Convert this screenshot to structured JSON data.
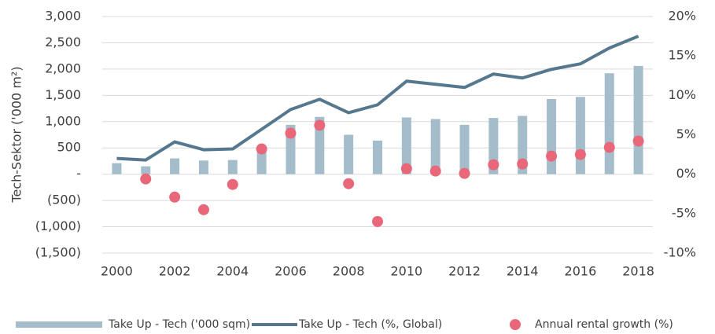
{
  "chart_data": {
    "type": "bar",
    "y_label": "Tech-Sektor ('000 m²)",
    "categories": [
      "2000",
      null,
      "2002",
      null,
      "2004",
      null,
      "2006",
      null,
      "2008",
      null,
      "2010",
      null,
      "2012",
      null,
      "2014",
      null,
      "2016",
      null,
      "2018"
    ],
    "ylim": [
      -1500,
      3000
    ],
    "yticks": [
      {
        "value": -1500,
        "label": "(1,500)"
      },
      {
        "value": -1000,
        "label": "(1,000)"
      },
      {
        "value": -500,
        "label": "(500)"
      },
      {
        "value": 0,
        "label": "-"
      },
      {
        "value": 500,
        "label": "500"
      },
      {
        "value": 1000,
        "label": "1,000"
      },
      {
        "value": 1500,
        "label": "1,500"
      },
      {
        "value": 2000,
        "label": "2,000"
      },
      {
        "value": 2500,
        "label": "2,500"
      },
      {
        "value": 3000,
        "label": "3,000"
      }
    ],
    "y2lim": [
      -10,
      20
    ],
    "y2ticks": [
      {
        "value": -10,
        "label": "-10%"
      },
      {
        "value": -5,
        "label": "-5%"
      },
      {
        "value": 0,
        "label": "0%"
      },
      {
        "value": 5,
        "label": "5%"
      },
      {
        "value": 10,
        "label": "10%"
      },
      {
        "value": 15,
        "label": "15%"
      },
      {
        "value": 20,
        "label": "20%"
      }
    ],
    "grid": true,
    "legend": "bottom",
    "series": [
      {
        "name": "Take Up - Tech ('000 sqm)",
        "type": "bar",
        "color": "#a5bccb",
        "values": [
          210,
          150,
          300,
          260,
          270,
          490,
          940,
          1090,
          750,
          640,
          1080,
          1050,
          940,
          1070,
          1110,
          1430,
          1470,
          1920,
          2060
        ]
      },
      {
        "name": "Take Up - Tech (%, Global)",
        "type": "line",
        "axis": "y2",
        "color": "#56788f",
        "values": [
          2.0,
          1.8,
          4.1,
          3.1,
          3.2,
          5.7,
          8.2,
          9.5,
          7.8,
          8.8,
          11.8,
          11.4,
          11.0,
          12.7,
          12.2,
          13.3,
          14.0,
          16.0,
          17.5
        ]
      },
      {
        "name": "Annual rental growth (%)",
        "type": "scatter",
        "axis": "y2",
        "color": "#e8687a",
        "values": [
          null,
          -0.6,
          -2.9,
          -4.5,
          -1.3,
          3.2,
          5.2,
          6.2,
          -1.2,
          -6.0,
          0.7,
          0.4,
          0.1,
          1.2,
          1.3,
          2.3,
          2.5,
          3.4,
          4.2
        ]
      }
    ]
  }
}
